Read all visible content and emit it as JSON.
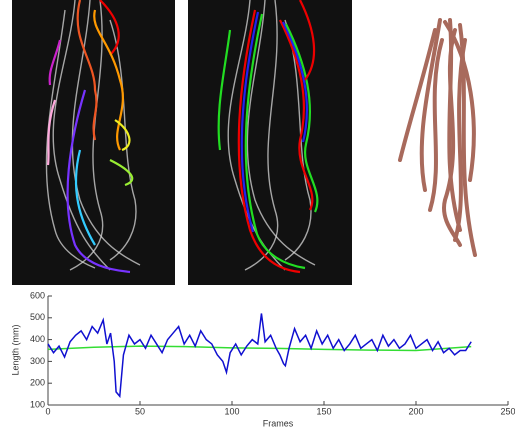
{
  "chart_data": {
    "type": "line",
    "xlabel": "Frames",
    "ylabel": "Length (mm)",
    "xlim": [
      0,
      250
    ],
    "xticks": [
      0,
      50,
      100,
      150,
      200,
      250
    ],
    "ylim": [
      100,
      600
    ],
    "yticks": [
      100,
      200,
      300,
      400,
      500,
      600
    ],
    "series": [
      {
        "color": "#1010d0",
        "x": [
          0,
          3,
          6,
          9,
          12,
          15,
          18,
          21,
          24,
          27,
          30,
          32,
          34,
          36,
          37,
          39,
          41,
          44,
          47,
          50,
          53,
          56,
          59,
          62,
          65,
          68,
          71,
          74,
          77,
          80,
          83,
          86,
          89,
          92,
          95,
          97,
          99,
          102,
          105,
          108,
          111,
          114,
          116,
          118,
          121,
          124,
          126,
          128,
          129,
          131,
          134,
          137,
          140,
          143,
          146,
          149,
          152,
          155,
          158,
          161,
          164,
          167,
          170,
          173,
          176,
          179,
          182,
          185,
          188,
          191,
          194,
          197,
          200,
          203,
          206,
          209,
          212,
          215,
          218,
          221,
          224,
          227,
          230
        ],
        "values": [
          380,
          340,
          370,
          320,
          390,
          420,
          440,
          400,
          460,
          430,
          490,
          380,
          430,
          300,
          160,
          140,
          330,
          420,
          380,
          400,
          360,
          420,
          380,
          340,
          400,
          430,
          460,
          380,
          420,
          370,
          440,
          400,
          380,
          330,
          300,
          250,
          340,
          380,
          330,
          370,
          400,
          380,
          520,
          390,
          420,
          360,
          330,
          290,
          280,
          360,
          450,
          390,
          420,
          360,
          440,
          380,
          420,
          360,
          400,
          350,
          380,
          420,
          360,
          380,
          400,
          350,
          420,
          370,
          400,
          360,
          380,
          420,
          360,
          380,
          400,
          350,
          390,
          340,
          360,
          330,
          350,
          350,
          390
        ]
      },
      {
        "color": "#33dd33",
        "x": [
          0,
          25,
          50,
          75,
          100,
          125,
          150,
          175,
          200,
          230
        ],
        "values": [
          355,
          365,
          370,
          368,
          362,
          360,
          355,
          352,
          350,
          368
        ]
      }
    ]
  }
}
